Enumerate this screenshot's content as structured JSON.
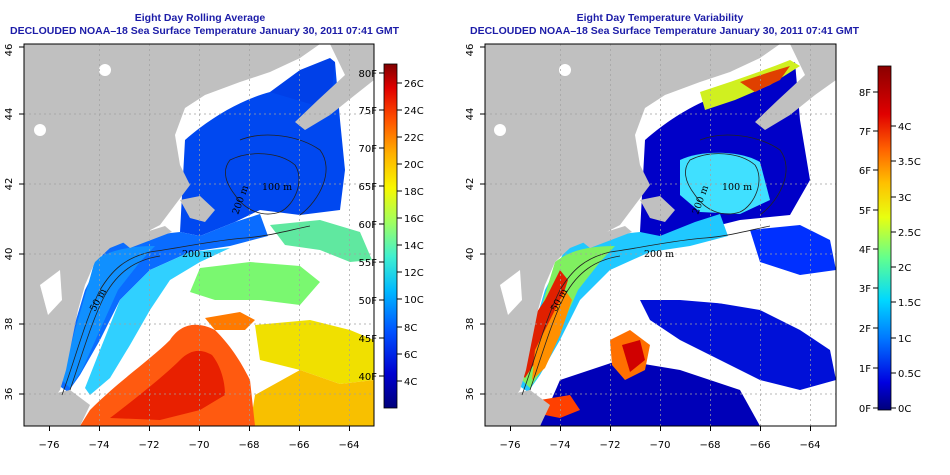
{
  "left_panel": {
    "title": "Eight Day Rolling Average",
    "subtitle": "DECLOUDED NOAA–18 Sea Surface Temperature January 30, 2011 07:41 GMT",
    "x_ticks": [
      "−76",
      "−74",
      "−72",
      "−70",
      "−68",
      "−66",
      "−64"
    ],
    "y_ticks": [
      "36",
      "38",
      "40",
      "42",
      "44",
      "46"
    ],
    "contour_labels": [
      "100 m",
      "200 m",
      "50 m",
      "200 m"
    ],
    "colorbar": {
      "fahrenheit": [
        "40F",
        "45F",
        "50F",
        "55F",
        "60F",
        "65F",
        "70F",
        "75F",
        "80F"
      ],
      "celsius": [
        "4C",
        "6C",
        "8C",
        "10C",
        "12C",
        "14C",
        "16C",
        "18C",
        "20C",
        "22C",
        "24C",
        "26C"
      ]
    }
  },
  "right_panel": {
    "title": "Eight Day Temperature Variability",
    "subtitle": "DECLOUDED NOAA–18 Sea Surface Temperature January 30, 2011 07:41 GMT",
    "x_ticks": [
      "−76",
      "−74",
      "−72",
      "−70",
      "−68",
      "−66",
      "−64"
    ],
    "y_ticks": [
      "36",
      "38",
      "40",
      "42",
      "44",
      "46"
    ],
    "contour_labels": [
      "100 m",
      "200 m",
      "50 m",
      "200 m"
    ],
    "colorbar": {
      "fahrenheit": [
        "0F",
        "1F",
        "2F",
        "3F",
        "4F",
        "5F",
        "6F",
        "7F",
        "8F"
      ],
      "celsius": [
        "0C",
        "0.5C",
        "1C",
        "1.5C",
        "2C",
        "2.5C",
        "3C",
        "3.5C",
        "4C"
      ]
    }
  },
  "colors": {
    "title": "#1c1ca8",
    "land": "#c0c0c0",
    "no_data": "#ffffff"
  }
}
